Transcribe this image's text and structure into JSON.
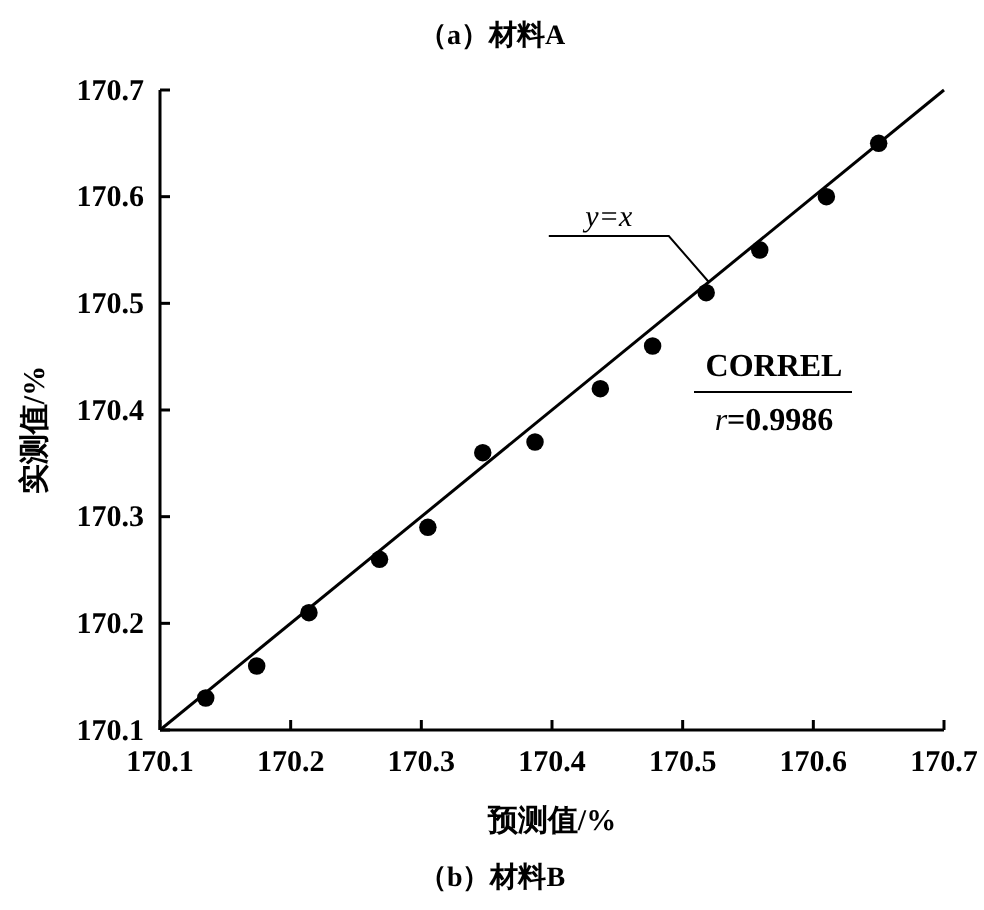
{
  "chart_data": {
    "type": "scatter",
    "title": "（a）材料A",
    "xlabel": "预测值/%",
    "ylabel": "实测值/%",
    "annotations": [
      "CORREL",
      "r=0.9986",
      "（b）材料B"
    ],
    "xlim": [
      170.1,
      170.7
    ],
    "ylim": [
      170.1,
      170.7
    ],
    "xticks": [
      170.1,
      170.2,
      170.3,
      170.4,
      170.5,
      170.6,
      170.7
    ],
    "yticks": [
      170.1,
      170.2,
      170.3,
      170.4,
      170.5,
      170.6,
      170.7
    ],
    "grid": false,
    "marker": "circle",
    "series": [
      {
        "color": "#000000",
        "x": [
          170.135,
          170.174,
          170.214,
          170.268,
          170.305,
          170.347,
          170.387,
          170.437,
          170.477,
          170.518,
          170.559,
          170.61,
          170.65
        ],
        "values": [
          170.13,
          170.16,
          170.21,
          170.26,
          170.29,
          170.36,
          170.37,
          170.42,
          170.46,
          170.51,
          170.55,
          170.6,
          170.65
        ]
      },
      {
        "type": "line",
        "name": "y=x",
        "color": "#000000",
        "x": [
          170.1,
          170.7
        ],
        "values": [
          170.1,
          170.7
        ],
        "line_style": "solid",
        "marker": "none"
      }
    ]
  }
}
